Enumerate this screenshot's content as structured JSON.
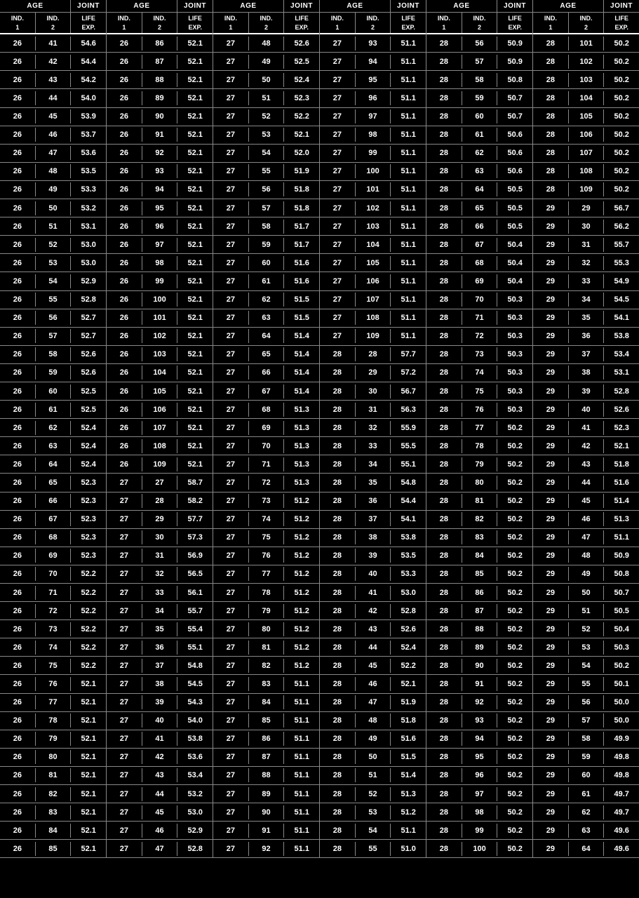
{
  "headers": {
    "age": "AGE",
    "joint": "JOINT",
    "ind1": "IND.",
    "ind1b": "1",
    "ind2": "IND.",
    "ind2b": "2",
    "life": "LIFE",
    "exp": "EXP."
  },
  "groups": [
    [
      [
        26,
        41,
        "54.6"
      ],
      [
        26,
        42,
        "54.4"
      ],
      [
        26,
        43,
        "54.2"
      ],
      [
        26,
        44,
        "54.0"
      ],
      [
        26,
        45,
        "53.9"
      ],
      [
        26,
        46,
        "53.7"
      ],
      [
        26,
        47,
        "53.6"
      ],
      [
        26,
        48,
        "53.5"
      ],
      [
        26,
        49,
        "53.3"
      ],
      [
        26,
        50,
        "53.2"
      ],
      [
        26,
        51,
        "53.1"
      ],
      [
        26,
        52,
        "53.0"
      ],
      [
        26,
        53,
        "53.0"
      ],
      [
        26,
        54,
        "52.9"
      ],
      [
        26,
        55,
        "52.8"
      ],
      [
        26,
        56,
        "52.7"
      ],
      [
        26,
        57,
        "52.7"
      ],
      [
        26,
        58,
        "52.6"
      ],
      [
        26,
        59,
        "52.6"
      ],
      [
        26,
        60,
        "52.5"
      ],
      [
        26,
        61,
        "52.5"
      ],
      [
        26,
        62,
        "52.4"
      ],
      [
        26,
        63,
        "52.4"
      ],
      [
        26,
        64,
        "52.4"
      ],
      [
        26,
        65,
        "52.3"
      ],
      [
        26,
        66,
        "52.3"
      ],
      [
        26,
        67,
        "52.3"
      ],
      [
        26,
        68,
        "52.3"
      ],
      [
        26,
        69,
        "52.3"
      ],
      [
        26,
        70,
        "52.2"
      ],
      [
        26,
        71,
        "52.2"
      ],
      [
        26,
        72,
        "52.2"
      ],
      [
        26,
        73,
        "52.2"
      ],
      [
        26,
        74,
        "52.2"
      ],
      [
        26,
        75,
        "52.2"
      ],
      [
        26,
        76,
        "52.1"
      ],
      [
        26,
        77,
        "52.1"
      ],
      [
        26,
        78,
        "52.1"
      ],
      [
        26,
        79,
        "52.1"
      ],
      [
        26,
        80,
        "52.1"
      ],
      [
        26,
        81,
        "52.1"
      ],
      [
        26,
        82,
        "52.1"
      ],
      [
        26,
        83,
        "52.1"
      ],
      [
        26,
        84,
        "52.1"
      ],
      [
        26,
        85,
        "52.1"
      ]
    ],
    [
      [
        26,
        86,
        "52.1"
      ],
      [
        26,
        87,
        "52.1"
      ],
      [
        26,
        88,
        "52.1"
      ],
      [
        26,
        89,
        "52.1"
      ],
      [
        26,
        90,
        "52.1"
      ],
      [
        26,
        91,
        "52.1"
      ],
      [
        26,
        92,
        "52.1"
      ],
      [
        26,
        93,
        "52.1"
      ],
      [
        26,
        94,
        "52.1"
      ],
      [
        26,
        95,
        "52.1"
      ],
      [
        26,
        96,
        "52.1"
      ],
      [
        26,
        97,
        "52.1"
      ],
      [
        26,
        98,
        "52.1"
      ],
      [
        26,
        99,
        "52.1"
      ],
      [
        26,
        100,
        "52.1"
      ],
      [
        26,
        101,
        "52.1"
      ],
      [
        26,
        102,
        "52.1"
      ],
      [
        26,
        103,
        "52.1"
      ],
      [
        26,
        104,
        "52.1"
      ],
      [
        26,
        105,
        "52.1"
      ],
      [
        26,
        106,
        "52.1"
      ],
      [
        26,
        107,
        "52.1"
      ],
      [
        26,
        108,
        "52.1"
      ],
      [
        26,
        109,
        "52.1"
      ],
      [
        27,
        27,
        "58.7"
      ],
      [
        27,
        28,
        "58.2"
      ],
      [
        27,
        29,
        "57.7"
      ],
      [
        27,
        30,
        "57.3"
      ],
      [
        27,
        31,
        "56.9"
      ],
      [
        27,
        32,
        "56.5"
      ],
      [
        27,
        33,
        "56.1"
      ],
      [
        27,
        34,
        "55.7"
      ],
      [
        27,
        35,
        "55.4"
      ],
      [
        27,
        36,
        "55.1"
      ],
      [
        27,
        37,
        "54.8"
      ],
      [
        27,
        38,
        "54.5"
      ],
      [
        27,
        39,
        "54.3"
      ],
      [
        27,
        40,
        "54.0"
      ],
      [
        27,
        41,
        "53.8"
      ],
      [
        27,
        42,
        "53.6"
      ],
      [
        27,
        43,
        "53.4"
      ],
      [
        27,
        44,
        "53.2"
      ],
      [
        27,
        45,
        "53.0"
      ],
      [
        27,
        46,
        "52.9"
      ],
      [
        27,
        47,
        "52.8"
      ]
    ],
    [
      [
        27,
        48,
        "52.6"
      ],
      [
        27,
        49,
        "52.5"
      ],
      [
        27,
        50,
        "52.4"
      ],
      [
        27,
        51,
        "52.3"
      ],
      [
        27,
        52,
        "52.2"
      ],
      [
        27,
        53,
        "52.1"
      ],
      [
        27,
        54,
        "52.0"
      ],
      [
        27,
        55,
        "51.9"
      ],
      [
        27,
        56,
        "51.8"
      ],
      [
        27,
        57,
        "51.8"
      ],
      [
        27,
        58,
        "51.7"
      ],
      [
        27,
        59,
        "51.7"
      ],
      [
        27,
        60,
        "51.6"
      ],
      [
        27,
        61,
        "51.6"
      ],
      [
        27,
        62,
        "51.5"
      ],
      [
        27,
        63,
        "51.5"
      ],
      [
        27,
        64,
        "51.4"
      ],
      [
        27,
        65,
        "51.4"
      ],
      [
        27,
        66,
        "51.4"
      ],
      [
        27,
        67,
        "51.4"
      ],
      [
        27,
        68,
        "51.3"
      ],
      [
        27,
        69,
        "51.3"
      ],
      [
        27,
        70,
        "51.3"
      ],
      [
        27,
        71,
        "51.3"
      ],
      [
        27,
        72,
        "51.3"
      ],
      [
        27,
        73,
        "51.2"
      ],
      [
        27,
        74,
        "51.2"
      ],
      [
        27,
        75,
        "51.2"
      ],
      [
        27,
        76,
        "51.2"
      ],
      [
        27,
        77,
        "51.2"
      ],
      [
        27,
        78,
        "51.2"
      ],
      [
        27,
        79,
        "51.2"
      ],
      [
        27,
        80,
        "51.2"
      ],
      [
        27,
        81,
        "51.2"
      ],
      [
        27,
        82,
        "51.2"
      ],
      [
        27,
        83,
        "51.1"
      ],
      [
        27,
        84,
        "51.1"
      ],
      [
        27,
        85,
        "51.1"
      ],
      [
        27,
        86,
        "51.1"
      ],
      [
        27,
        87,
        "51.1"
      ],
      [
        27,
        88,
        "51.1"
      ],
      [
        27,
        89,
        "51.1"
      ],
      [
        27,
        90,
        "51.1"
      ],
      [
        27,
        91,
        "51.1"
      ],
      [
        27,
        92,
        "51.1"
      ]
    ],
    [
      [
        27,
        93,
        "51.1"
      ],
      [
        27,
        94,
        "51.1"
      ],
      [
        27,
        95,
        "51.1"
      ],
      [
        27,
        96,
        "51.1"
      ],
      [
        27,
        97,
        "51.1"
      ],
      [
        27,
        98,
        "51.1"
      ],
      [
        27,
        99,
        "51.1"
      ],
      [
        27,
        100,
        "51.1"
      ],
      [
        27,
        101,
        "51.1"
      ],
      [
        27,
        102,
        "51.1"
      ],
      [
        27,
        103,
        "51.1"
      ],
      [
        27,
        104,
        "51.1"
      ],
      [
        27,
        105,
        "51.1"
      ],
      [
        27,
        106,
        "51.1"
      ],
      [
        27,
        107,
        "51.1"
      ],
      [
        27,
        108,
        "51.1"
      ],
      [
        27,
        109,
        "51.1"
      ],
      [
        28,
        28,
        "57.7"
      ],
      [
        28,
        29,
        "57.2"
      ],
      [
        28,
        30,
        "56.7"
      ],
      [
        28,
        31,
        "56.3"
      ],
      [
        28,
        32,
        "55.9"
      ],
      [
        28,
        33,
        "55.5"
      ],
      [
        28,
        34,
        "55.1"
      ],
      [
        28,
        35,
        "54.8"
      ],
      [
        28,
        36,
        "54.4"
      ],
      [
        28,
        37,
        "54.1"
      ],
      [
        28,
        38,
        "53.8"
      ],
      [
        28,
        39,
        "53.5"
      ],
      [
        28,
        40,
        "53.3"
      ],
      [
        28,
        41,
        "53.0"
      ],
      [
        28,
        42,
        "52.8"
      ],
      [
        28,
        43,
        "52.6"
      ],
      [
        28,
        44,
        "52.4"
      ],
      [
        28,
        45,
        "52.2"
      ],
      [
        28,
        46,
        "52.1"
      ],
      [
        28,
        47,
        "51.9"
      ],
      [
        28,
        48,
        "51.8"
      ],
      [
        28,
        49,
        "51.6"
      ],
      [
        28,
        50,
        "51.5"
      ],
      [
        28,
        51,
        "51.4"
      ],
      [
        28,
        52,
        "51.3"
      ],
      [
        28,
        53,
        "51.2"
      ],
      [
        28,
        54,
        "51.1"
      ],
      [
        28,
        55,
        "51.0"
      ]
    ],
    [
      [
        28,
        56,
        "50.9"
      ],
      [
        28,
        57,
        "50.9"
      ],
      [
        28,
        58,
        "50.8"
      ],
      [
        28,
        59,
        "50.7"
      ],
      [
        28,
        60,
        "50.7"
      ],
      [
        28,
        61,
        "50.6"
      ],
      [
        28,
        62,
        "50.6"
      ],
      [
        28,
        63,
        "50.6"
      ],
      [
        28,
        64,
        "50.5"
      ],
      [
        28,
        65,
        "50.5"
      ],
      [
        28,
        66,
        "50.5"
      ],
      [
        28,
        67,
        "50.4"
      ],
      [
        28,
        68,
        "50.4"
      ],
      [
        28,
        69,
        "50.4"
      ],
      [
        28,
        70,
        "50.3"
      ],
      [
        28,
        71,
        "50.3"
      ],
      [
        28,
        72,
        "50.3"
      ],
      [
        28,
        73,
        "50.3"
      ],
      [
        28,
        74,
        "50.3"
      ],
      [
        28,
        75,
        "50.3"
      ],
      [
        28,
        76,
        "50.3"
      ],
      [
        28,
        77,
        "50.2"
      ],
      [
        28,
        78,
        "50.2"
      ],
      [
        28,
        79,
        "50.2"
      ],
      [
        28,
        80,
        "50.2"
      ],
      [
        28,
        81,
        "50.2"
      ],
      [
        28,
        82,
        "50.2"
      ],
      [
        28,
        83,
        "50.2"
      ],
      [
        28,
        84,
        "50.2"
      ],
      [
        28,
        85,
        "50.2"
      ],
      [
        28,
        86,
        "50.2"
      ],
      [
        28,
        87,
        "50.2"
      ],
      [
        28,
        88,
        "50.2"
      ],
      [
        28,
        89,
        "50.2"
      ],
      [
        28,
        90,
        "50.2"
      ],
      [
        28,
        91,
        "50.2"
      ],
      [
        28,
        92,
        "50.2"
      ],
      [
        28,
        93,
        "50.2"
      ],
      [
        28,
        94,
        "50.2"
      ],
      [
        28,
        95,
        "50.2"
      ],
      [
        28,
        96,
        "50.2"
      ],
      [
        28,
        97,
        "50.2"
      ],
      [
        28,
        98,
        "50.2"
      ],
      [
        28,
        99,
        "50.2"
      ],
      [
        28,
        100,
        "50.2"
      ]
    ],
    [
      [
        28,
        101,
        "50.2"
      ],
      [
        28,
        102,
        "50.2"
      ],
      [
        28,
        103,
        "50.2"
      ],
      [
        28,
        104,
        "50.2"
      ],
      [
        28,
        105,
        "50.2"
      ],
      [
        28,
        106,
        "50.2"
      ],
      [
        28,
        107,
        "50.2"
      ],
      [
        28,
        108,
        "50.2"
      ],
      [
        28,
        109,
        "50.2"
      ],
      [
        29,
        29,
        "56.7"
      ],
      [
        29,
        30,
        "56.2"
      ],
      [
        29,
        31,
        "55.7"
      ],
      [
        29,
        32,
        "55.3"
      ],
      [
        29,
        33,
        "54.9"
      ],
      [
        29,
        34,
        "54.5"
      ],
      [
        29,
        35,
        "54.1"
      ],
      [
        29,
        36,
        "53.8"
      ],
      [
        29,
        37,
        "53.4"
      ],
      [
        29,
        38,
        "53.1"
      ],
      [
        29,
        39,
        "52.8"
      ],
      [
        29,
        40,
        "52.6"
      ],
      [
        29,
        41,
        "52.3"
      ],
      [
        29,
        42,
        "52.1"
      ],
      [
        29,
        43,
        "51.8"
      ],
      [
        29,
        44,
        "51.6"
      ],
      [
        29,
        45,
        "51.4"
      ],
      [
        29,
        46,
        "51.3"
      ],
      [
        29,
        47,
        "51.1"
      ],
      [
        29,
        48,
        "50.9"
      ],
      [
        29,
        49,
        "50.8"
      ],
      [
        29,
        50,
        "50.7"
      ],
      [
        29,
        51,
        "50.5"
      ],
      [
        29,
        52,
        "50.4"
      ],
      [
        29,
        53,
        "50.3"
      ],
      [
        29,
        54,
        "50.2"
      ],
      [
        29,
        55,
        "50.1"
      ],
      [
        29,
        56,
        "50.0"
      ],
      [
        29,
        57,
        "50.0"
      ],
      [
        29,
        58,
        "49.9"
      ],
      [
        29,
        59,
        "49.8"
      ],
      [
        29,
        60,
        "49.8"
      ],
      [
        29,
        61,
        "49.7"
      ],
      [
        29,
        62,
        "49.7"
      ],
      [
        29,
        63,
        "49.6"
      ],
      [
        29,
        64,
        "49.6"
      ]
    ]
  ]
}
